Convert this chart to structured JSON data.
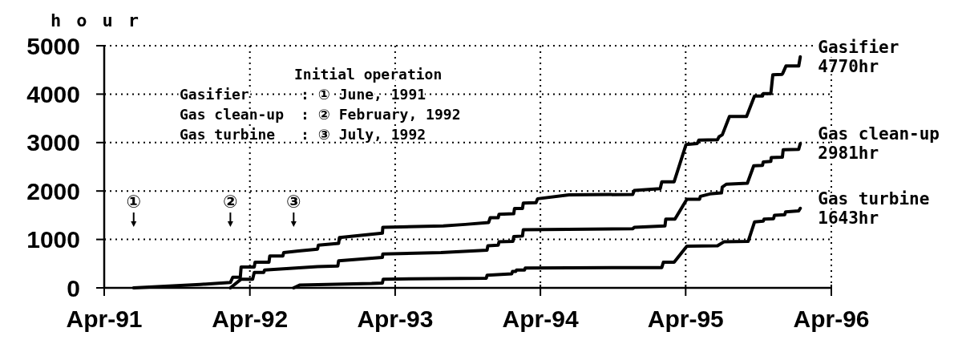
{
  "chart_data": {
    "type": "line",
    "ylabel": "hour",
    "xlim": [
      "1991-04-01",
      "1996-04-01"
    ],
    "xticks": [
      {
        "value": "1991-04-01",
        "label": "Apr-91"
      },
      {
        "value": "1992-04-01",
        "label": "Apr-92"
      },
      {
        "value": "1993-04-01",
        "label": "Apr-93"
      },
      {
        "value": "1994-04-01",
        "label": "Apr-94"
      },
      {
        "value": "1995-04-01",
        "label": "Apr-95"
      },
      {
        "value": "1996-04-01",
        "label": "Apr-96"
      }
    ],
    "ylim": [
      0,
      5000
    ],
    "yticks": [
      0,
      1000,
      2000,
      3000,
      4000,
      5000
    ],
    "grid": true,
    "annotations": [
      "Initial operation",
      "Gasifier : ① June, 1991",
      "Gas clean-up : ② February, 1992",
      "Gas turbine : ③ July, 1992",
      "①",
      "②",
      "③"
    ],
    "series": [
      {
        "name": "Gasifier",
        "color": "#000000",
        "x": [
          "1991-06-14",
          "1991-11-28",
          "1992-02-12",
          "1992-02-18",
          "1992-03-08",
          "1992-03-10",
          "1992-04-12",
          "1992-04-14",
          "1992-05-19",
          "1992-05-21",
          "1992-06-23",
          "1992-06-25",
          "1992-08-01",
          "1992-09-18",
          "1992-09-20",
          "1992-11-10",
          "1992-11-12",
          "1993-02-28",
          "1993-03-01",
          "1993-07-31",
          "1993-09-24",
          "1993-11-22",
          "1993-11-26",
          "1993-12-16",
          "1993-12-18",
          "1994-01-24",
          "1994-01-26",
          "1994-02-15",
          "1994-02-17",
          "1994-03-21",
          "1994-03-25",
          "1994-06-12",
          "1994-11-19",
          "1994-11-23",
          "1995-01-27",
          "1995-01-31",
          "1995-03-03",
          "1995-04-02",
          "1995-04-30",
          "1995-05-04",
          "1995-06-20",
          "1995-06-24",
          "1995-07-02",
          "1995-07-20",
          "1995-09-01",
          "1995-09-21",
          "1995-10-11",
          "1995-10-13",
          "1995-11-01",
          "1995-11-06",
          "1995-11-29",
          "1995-12-01",
          "1995-12-09",
          "1996-01-10",
          "1996-01-14"
        ],
        "values": [
          0,
          70,
          110,
          220,
          220,
          430,
          430,
          530,
          530,
          660,
          660,
          730,
          760,
          800,
          880,
          920,
          1040,
          1130,
          1250,
          1280,
          1310,
          1350,
          1450,
          1450,
          1520,
          1530,
          1640,
          1640,
          1750,
          1760,
          1840,
          1920,
          1930,
          2010,
          2050,
          2190,
          2190,
          2960,
          2980,
          3050,
          3060,
          3120,
          3160,
          3540,
          3540,
          3960,
          3960,
          4010,
          4010,
          4400,
          4410,
          4430,
          4580,
          4580,
          4770
        ],
        "value_labels": [
          null,
          null,
          null,
          null,
          null,
          null,
          null,
          null,
          null,
          null,
          null,
          null,
          null,
          null,
          null,
          null,
          null,
          null,
          null,
          null,
          null,
          null,
          null,
          null,
          null,
          null,
          null,
          null,
          null,
          null,
          null,
          null,
          null,
          null,
          null,
          null,
          null,
          null,
          null,
          null,
          null,
          null,
          null,
          null,
          null,
          null,
          null,
          null,
          null,
          null,
          null,
          null,
          null,
          null,
          "4770hr"
        ]
      },
      {
        "name": "Gas clean-up",
        "color": "#000000",
        "x": [
          "1992-02-12",
          "1992-03-10",
          "1992-04-08",
          "1992-04-12",
          "1992-05-06",
          "1992-05-08",
          "1992-09-18",
          "1992-11-08",
          "1992-11-10",
          "1993-02-28",
          "1993-03-01",
          "1993-07-25",
          "1993-11-18",
          "1993-11-20",
          "1993-12-16",
          "1993-12-18",
          "1994-01-22",
          "1994-01-24",
          "1994-02-15",
          "1994-02-17",
          "1994-11-19",
          "1994-11-23",
          "1995-02-08",
          "1995-02-10",
          "1995-03-05",
          "1995-04-04",
          "1995-05-06",
          "1995-05-08",
          "1995-06-01",
          "1995-06-30",
          "1995-07-02",
          "1995-07-12",
          "1995-09-03",
          "1995-09-19",
          "1995-10-11",
          "1995-10-13",
          "1995-11-01",
          "1995-11-02",
          "1995-11-30",
          "1995-12-02",
          "1996-01-10",
          "1996-01-14"
        ],
        "values": [
          0,
          180,
          180,
          320,
          320,
          370,
          440,
          450,
          560,
          630,
          700,
          730,
          780,
          870,
          880,
          950,
          960,
          1060,
          1070,
          1200,
          1220,
          1250,
          1280,
          1420,
          1420,
          1830,
          1830,
          1890,
          1940,
          1960,
          2080,
          2140,
          2160,
          2520,
          2530,
          2600,
          2610,
          2690,
          2700,
          2850,
          2860,
          2981
        ],
        "value_labels": [
          null,
          null,
          null,
          null,
          null,
          null,
          null,
          null,
          null,
          null,
          null,
          null,
          null,
          null,
          null,
          null,
          null,
          null,
          null,
          null,
          null,
          null,
          null,
          null,
          null,
          null,
          null,
          null,
          null,
          null,
          null,
          null,
          null,
          null,
          null,
          null,
          null,
          null,
          null,
          null,
          null,
          "2981hr"
        ]
      },
      {
        "name": "Gas turbine",
        "color": "#000000",
        "x": [
          "1992-07-20",
          "1992-08-05",
          "1993-02-01",
          "1993-02-28",
          "1993-03-02",
          "1993-11-16",
          "1993-11-18",
          "1994-01-19",
          "1994-01-21",
          "1994-01-29",
          "1994-01-31",
          "1994-02-20",
          "1994-02-22",
          "1994-11-19",
          "1995-01-31",
          "1995-02-04",
          "1995-03-03",
          "1995-04-04",
          "1995-06-20",
          "1995-06-24",
          "1995-07-06",
          "1995-09-05",
          "1995-09-21",
          "1995-10-13",
          "1995-10-15",
          "1995-11-08",
          "1995-11-10",
          "1995-12-06",
          "1995-12-08",
          "1996-01-10",
          "1996-01-14"
        ],
        "values": [
          0,
          60,
          90,
          100,
          180,
          200,
          260,
          290,
          340,
          340,
          370,
          370,
          410,
          420,
          420,
          530,
          530,
          860,
          870,
          890,
          950,
          960,
          1360,
          1380,
          1420,
          1430,
          1500,
          1510,
          1570,
          1590,
          1643
        ],
        "value_labels": [
          null,
          null,
          null,
          null,
          null,
          null,
          null,
          null,
          null,
          null,
          null,
          null,
          null,
          null,
          null,
          null,
          null,
          null,
          null,
          null,
          null,
          null,
          null,
          null,
          null,
          null,
          null,
          null,
          null,
          null,
          "1643hr"
        ]
      }
    ]
  }
}
